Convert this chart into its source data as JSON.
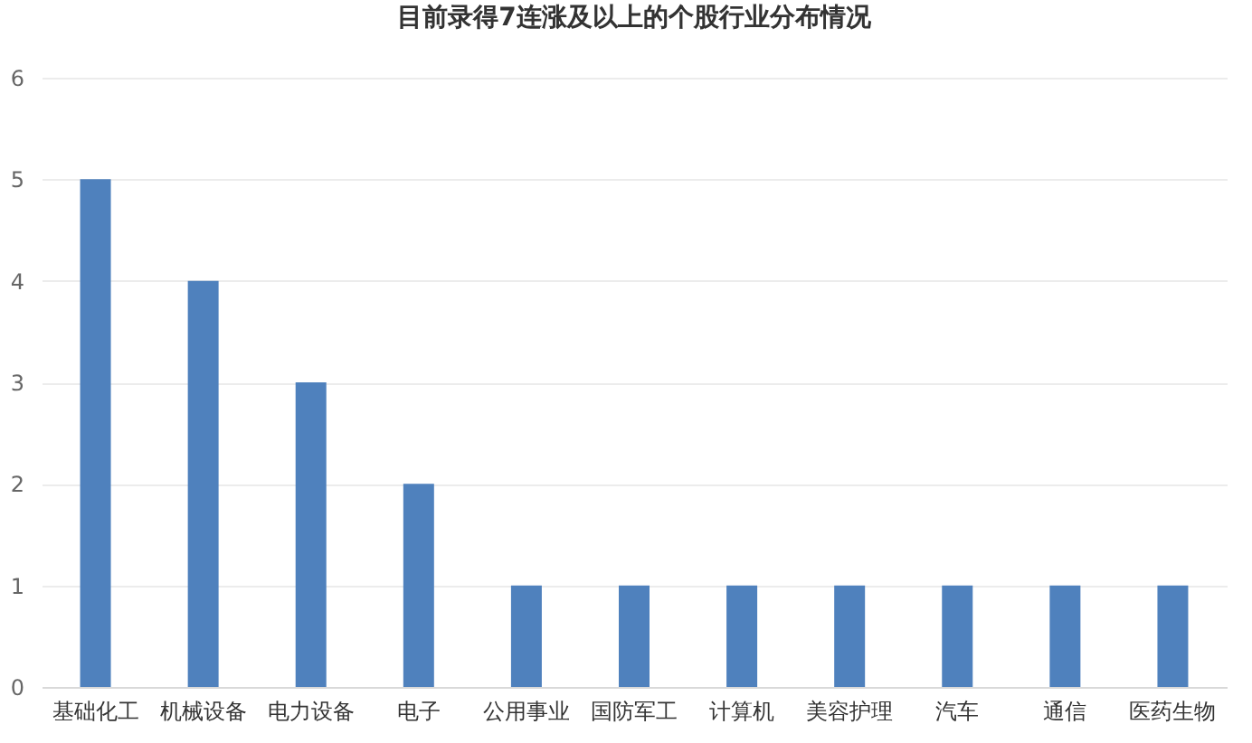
{
  "chart_data": {
    "type": "bar",
    "title": "目前录得7连涨及以上的个股行业分布情况",
    "categories": [
      "基础化工",
      "机械设备",
      "电力设备",
      "电子",
      "公用事业",
      "国防军工",
      "计算机",
      "美容护理",
      "汽车",
      "通信",
      "医药生物"
    ],
    "values": [
      5,
      4,
      3,
      2,
      1,
      1,
      1,
      1,
      1,
      1,
      1
    ],
    "color": "#4f81bd",
    "ylim": [
      0,
      6
    ],
    "yticks": [
      0,
      1,
      2,
      3,
      4,
      5,
      6
    ],
    "grid": true
  }
}
